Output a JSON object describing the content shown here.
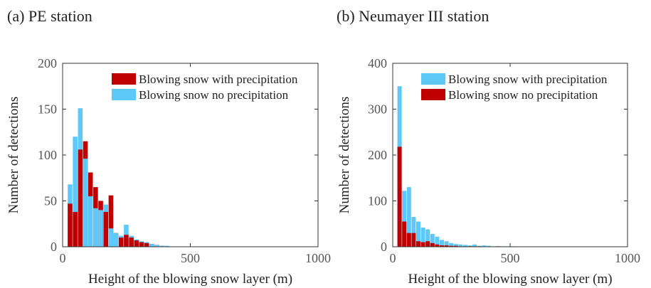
{
  "chart_data": [
    {
      "type": "histogram",
      "title": "(a) PE station",
      "xlabel": "Height of the blowing snow layer (m)",
      "ylabel": "Number of detections",
      "bins": [
        20,
        40,
        60,
        80,
        100,
        120,
        140,
        160,
        180,
        200,
        220,
        240,
        260,
        280,
        300,
        320,
        340,
        360,
        380,
        400,
        420
      ],
      "series": [
        {
          "name": "Blowing snow with precipitation",
          "color": "#c00000",
          "values": [
            47,
            38,
            106,
            115,
            81,
            65,
            50,
            38,
            56,
            15,
            10,
            13,
            10,
            7,
            5,
            4,
            3,
            2,
            1,
            0
          ]
        },
        {
          "name": "Blowing snow no precipitation",
          "color": "#5ec8f8",
          "values": [
            68,
            120,
            151,
            96,
            55,
            42,
            40,
            46,
            20,
            15,
            12,
            24,
            12,
            8,
            6,
            5,
            3,
            2,
            1,
            1
          ]
        }
      ],
      "xlim": [
        0,
        1000
      ],
      "xticks": [
        0,
        500,
        1000
      ],
      "ylim": [
        0,
        200
      ],
      "yticks": [
        0,
        50,
        100,
        150,
        200
      ],
      "legend": "upper right"
    },
    {
      "type": "histogram",
      "title": "(b) Neumayer III station",
      "xlabel": "Height of the blowing snow layer (m)",
      "ylabel": "Number of detections",
      "bins": [
        20,
        40,
        60,
        80,
        100,
        120,
        140,
        160,
        180,
        200,
        220,
        240,
        260,
        280,
        300,
        320,
        340,
        360,
        380,
        400,
        420,
        440,
        460,
        480,
        500,
        520
      ],
      "series": [
        {
          "name": "Blowing snow with precipitation",
          "color": "#5ec8f8",
          "values": [
            350,
            122,
            130,
            65,
            55,
            42,
            38,
            28,
            22,
            15,
            12,
            8,
            6,
            5,
            4,
            3,
            5,
            2,
            3,
            2,
            1,
            1,
            1,
            1,
            1
          ]
        },
        {
          "name": "Blowing snow no precipitation",
          "color": "#c00000",
          "values": [
            218,
            55,
            30,
            30,
            12,
            10,
            12,
            8,
            5,
            3,
            3,
            2,
            2,
            1,
            1,
            1,
            1,
            1,
            0,
            0,
            0,
            1,
            0,
            0,
            0
          ]
        }
      ],
      "xlim": [
        0,
        1000
      ],
      "xticks": [
        0,
        500,
        1000
      ],
      "ylim": [
        0,
        400
      ],
      "yticks": [
        0,
        100,
        200,
        300,
        400
      ],
      "legend": "upper right"
    }
  ]
}
